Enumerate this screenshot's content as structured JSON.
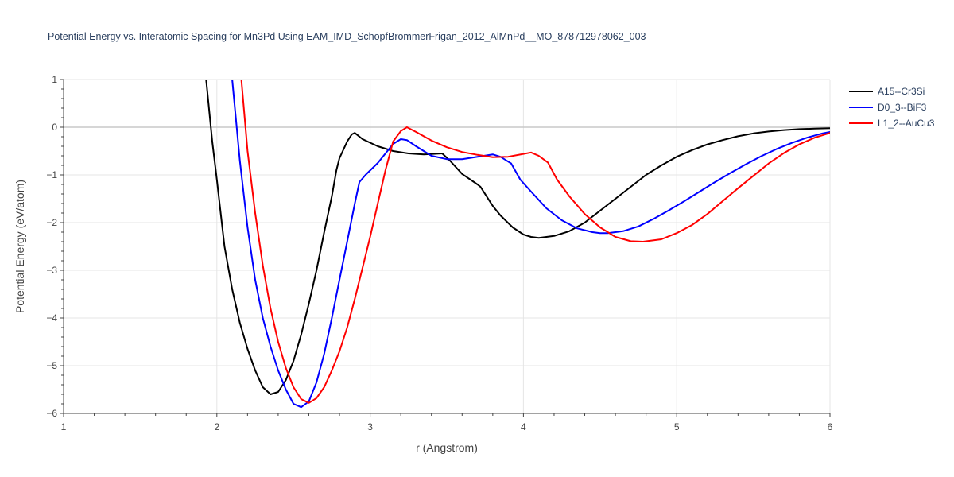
{
  "chart_data": {
    "type": "line",
    "title": "Potential Energy vs. Interatomic Spacing for Mn3Pd Using EAM_IMD_SchopfBrommerFrigan_2012_AlMnPd__MO_878712978062_003",
    "xlabel": "r (Angstrom)",
    "ylabel": "Potential Energy (eV/atom)",
    "xlim": [
      1,
      6
    ],
    "ylim": [
      -6,
      1
    ],
    "x_ticks": [
      1,
      2,
      3,
      4,
      5,
      6
    ],
    "y_ticks": [
      1,
      0,
      -1,
      -2,
      -3,
      -4,
      -5,
      -6
    ],
    "x_tick_labels": [
      "1",
      "2",
      "3",
      "4",
      "5",
      "6"
    ],
    "y_tick_labels": [
      "1",
      "0",
      "−1",
      "−2",
      "−3",
      "−4",
      "−5",
      "−6"
    ],
    "grid": true,
    "legend_position": "top-right",
    "series": [
      {
        "name": "A15--Cr3Si",
        "color": "#000000",
        "points": [
          [
            1.93,
            1.0
          ],
          [
            1.97,
            -0.3
          ],
          [
            2.0,
            -1.1
          ],
          [
            2.05,
            -2.5
          ],
          [
            2.1,
            -3.4
          ],
          [
            2.15,
            -4.1
          ],
          [
            2.2,
            -4.65
          ],
          [
            2.25,
            -5.1
          ],
          [
            2.3,
            -5.45
          ],
          [
            2.35,
            -5.6
          ],
          [
            2.4,
            -5.55
          ],
          [
            2.45,
            -5.3
          ],
          [
            2.5,
            -4.9
          ],
          [
            2.55,
            -4.35
          ],
          [
            2.6,
            -3.7
          ],
          [
            2.65,
            -3.0
          ],
          [
            2.7,
            -2.2
          ],
          [
            2.75,
            -1.45
          ],
          [
            2.78,
            -0.9
          ],
          [
            2.8,
            -0.65
          ],
          [
            2.85,
            -0.3
          ],
          [
            2.88,
            -0.15
          ],
          [
            2.9,
            -0.12
          ],
          [
            2.95,
            -0.25
          ],
          [
            3.05,
            -0.4
          ],
          [
            3.15,
            -0.5
          ],
          [
            3.25,
            -0.55
          ],
          [
            3.35,
            -0.57
          ],
          [
            3.47,
            -0.55
          ],
          [
            3.52,
            -0.7
          ],
          [
            3.6,
            -0.98
          ],
          [
            3.7,
            -1.2
          ],
          [
            3.72,
            -1.25
          ],
          [
            3.8,
            -1.65
          ],
          [
            3.85,
            -1.85
          ],
          [
            3.93,
            -2.1
          ],
          [
            4.0,
            -2.25
          ],
          [
            4.05,
            -2.3
          ],
          [
            4.1,
            -2.32
          ],
          [
            4.2,
            -2.28
          ],
          [
            4.3,
            -2.18
          ],
          [
            4.4,
            -2.0
          ],
          [
            4.5,
            -1.75
          ],
          [
            4.6,
            -1.5
          ],
          [
            4.7,
            -1.25
          ],
          [
            4.8,
            -1.0
          ],
          [
            4.9,
            -0.8
          ],
          [
            5.0,
            -0.62
          ],
          [
            5.1,
            -0.48
          ],
          [
            5.2,
            -0.36
          ],
          [
            5.3,
            -0.27
          ],
          [
            5.4,
            -0.19
          ],
          [
            5.5,
            -0.13
          ],
          [
            5.6,
            -0.09
          ],
          [
            5.7,
            -0.06
          ],
          [
            5.8,
            -0.04
          ],
          [
            5.9,
            -0.03
          ],
          [
            6.0,
            -0.02
          ]
        ]
      },
      {
        "name": "D0_3--BiF3",
        "color": "#0000ff",
        "points": [
          [
            2.1,
            1.0
          ],
          [
            2.15,
            -0.7
          ],
          [
            2.2,
            -2.1
          ],
          [
            2.25,
            -3.2
          ],
          [
            2.3,
            -4.0
          ],
          [
            2.35,
            -4.6
          ],
          [
            2.4,
            -5.1
          ],
          [
            2.45,
            -5.5
          ],
          [
            2.5,
            -5.8
          ],
          [
            2.55,
            -5.87
          ],
          [
            2.6,
            -5.75
          ],
          [
            2.65,
            -5.35
          ],
          [
            2.7,
            -4.75
          ],
          [
            2.75,
            -4.0
          ],
          [
            2.8,
            -3.2
          ],
          [
            2.85,
            -2.4
          ],
          [
            2.9,
            -1.6
          ],
          [
            2.93,
            -1.15
          ],
          [
            2.97,
            -1.0
          ],
          [
            3.05,
            -0.75
          ],
          [
            3.1,
            -0.55
          ],
          [
            3.15,
            -0.35
          ],
          [
            3.2,
            -0.25
          ],
          [
            3.24,
            -0.27
          ],
          [
            3.3,
            -0.4
          ],
          [
            3.4,
            -0.6
          ],
          [
            3.5,
            -0.67
          ],
          [
            3.6,
            -0.67
          ],
          [
            3.7,
            -0.62
          ],
          [
            3.8,
            -0.57
          ],
          [
            3.85,
            -0.62
          ],
          [
            3.92,
            -0.76
          ],
          [
            3.98,
            -1.1
          ],
          [
            4.05,
            -1.35
          ],
          [
            4.15,
            -1.7
          ],
          [
            4.25,
            -1.95
          ],
          [
            4.35,
            -2.12
          ],
          [
            4.45,
            -2.2
          ],
          [
            4.5,
            -2.22
          ],
          [
            4.55,
            -2.22
          ],
          [
            4.65,
            -2.18
          ],
          [
            4.75,
            -2.08
          ],
          [
            4.85,
            -1.92
          ],
          [
            4.95,
            -1.74
          ],
          [
            5.05,
            -1.55
          ],
          [
            5.15,
            -1.35
          ],
          [
            5.25,
            -1.15
          ],
          [
            5.35,
            -0.96
          ],
          [
            5.45,
            -0.78
          ],
          [
            5.55,
            -0.61
          ],
          [
            5.65,
            -0.46
          ],
          [
            5.75,
            -0.33
          ],
          [
            5.85,
            -0.22
          ],
          [
            5.95,
            -0.13
          ],
          [
            6.0,
            -0.1
          ]
        ]
      },
      {
        "name": "L1_2--AuCu3",
        "color": "#ff0000",
        "points": [
          [
            2.16,
            1.0
          ],
          [
            2.2,
            -0.5
          ],
          [
            2.25,
            -1.8
          ],
          [
            2.3,
            -2.9
          ],
          [
            2.35,
            -3.8
          ],
          [
            2.4,
            -4.5
          ],
          [
            2.45,
            -5.05
          ],
          [
            2.5,
            -5.45
          ],
          [
            2.55,
            -5.7
          ],
          [
            2.6,
            -5.78
          ],
          [
            2.65,
            -5.68
          ],
          [
            2.7,
            -5.45
          ],
          [
            2.75,
            -5.1
          ],
          [
            2.8,
            -4.7
          ],
          [
            2.85,
            -4.2
          ],
          [
            2.9,
            -3.6
          ],
          [
            2.95,
            -2.95
          ],
          [
            3.0,
            -2.3
          ],
          [
            3.05,
            -1.6
          ],
          [
            3.1,
            -0.9
          ],
          [
            3.15,
            -0.3
          ],
          [
            3.2,
            -0.08
          ],
          [
            3.24,
            0.0
          ],
          [
            3.3,
            -0.1
          ],
          [
            3.4,
            -0.28
          ],
          [
            3.5,
            -0.42
          ],
          [
            3.6,
            -0.52
          ],
          [
            3.7,
            -0.58
          ],
          [
            3.8,
            -0.63
          ],
          [
            3.9,
            -0.62
          ],
          [
            4.0,
            -0.56
          ],
          [
            4.05,
            -0.53
          ],
          [
            4.1,
            -0.6
          ],
          [
            4.16,
            -0.74
          ],
          [
            4.22,
            -1.1
          ],
          [
            4.3,
            -1.45
          ],
          [
            4.4,
            -1.82
          ],
          [
            4.5,
            -2.1
          ],
          [
            4.6,
            -2.3
          ],
          [
            4.7,
            -2.39
          ],
          [
            4.78,
            -2.4
          ],
          [
            4.9,
            -2.35
          ],
          [
            5.0,
            -2.22
          ],
          [
            5.1,
            -2.05
          ],
          [
            5.2,
            -1.82
          ],
          [
            5.3,
            -1.55
          ],
          [
            5.4,
            -1.28
          ],
          [
            5.5,
            -1.02
          ],
          [
            5.6,
            -0.76
          ],
          [
            5.7,
            -0.54
          ],
          [
            5.8,
            -0.36
          ],
          [
            5.9,
            -0.22
          ],
          [
            6.0,
            -0.12
          ]
        ]
      }
    ]
  }
}
